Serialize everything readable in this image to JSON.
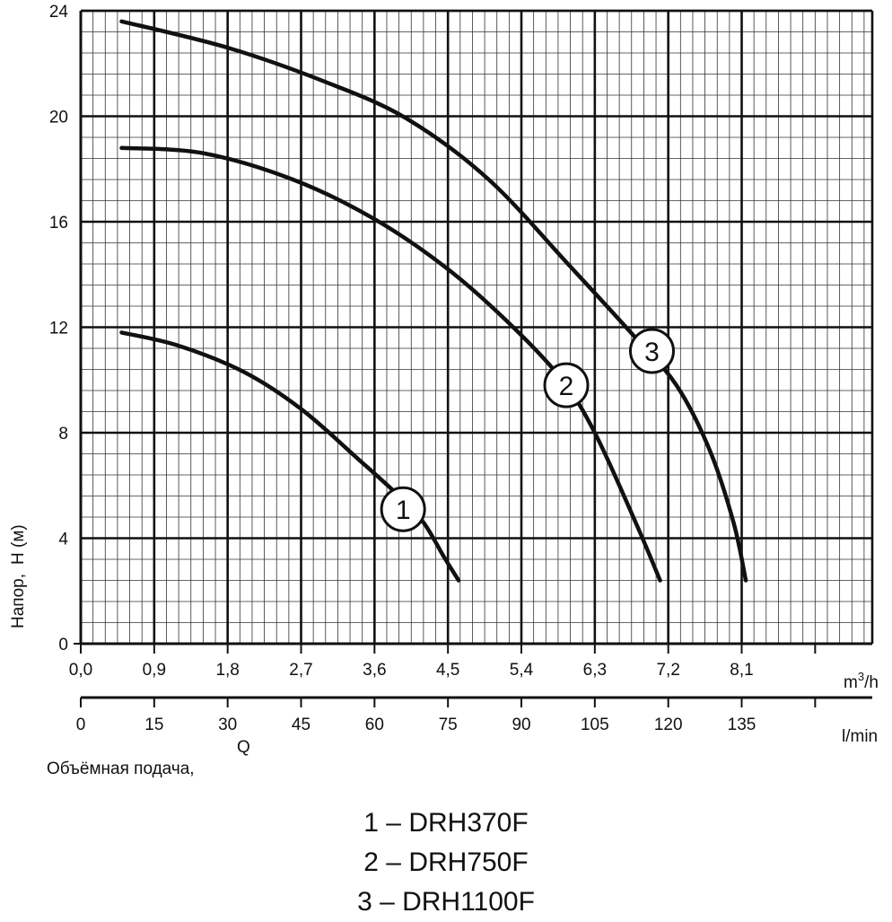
{
  "chart_data": {
    "type": "line",
    "xlabel": "Объёмная подача,",
    "xlabel_symbol": "Q",
    "ylabel": "Напор,",
    "ylabel_symbol": "H (м)",
    "x_unit_primary": "m³/h",
    "x_unit_secondary": "l/min",
    "ylim": [
      0,
      24
    ],
    "xlim": [
      0,
      9.7
    ],
    "grid": true,
    "y_ticks": [
      "0",
      "4",
      "8",
      "12",
      "16",
      "20",
      "24"
    ],
    "x_ticks_m3h": [
      "0,0",
      "0,9",
      "1,8",
      "2,7",
      "3,6",
      "4,5",
      "5,4",
      "6,3",
      "7,2",
      "8,1"
    ],
    "x_ticks_lmin": [
      "0",
      "15",
      "30",
      "45",
      "60",
      "75",
      "90",
      "105",
      "120",
      "135"
    ],
    "series": [
      {
        "name": "1",
        "color": "#111111",
        "x": [
          0.5,
          1.2,
          2.0,
          2.7,
          3.4,
          3.9,
          4.2,
          4.45,
          4.63
        ],
        "y": [
          11.8,
          11.3,
          10.3,
          8.9,
          7.0,
          5.6,
          4.6,
          3.3,
          2.4
        ]
      },
      {
        "name": "2",
        "color": "#111111",
        "x": [
          0.5,
          1.5,
          2.6,
          3.6,
          4.5,
          5.3,
          5.9,
          6.3,
          6.8,
          7.1
        ],
        "y": [
          18.8,
          18.6,
          17.6,
          16.1,
          14.2,
          12.0,
          10.0,
          8.0,
          4.6,
          2.4
        ]
      },
      {
        "name": "3",
        "color": "#111111",
        "x": [
          0.5,
          1.8,
          3.0,
          4.0,
          5.0,
          6.0,
          6.8,
          7.3,
          7.7,
          8.0,
          8.15
        ],
        "y": [
          23.6,
          22.6,
          21.3,
          19.9,
          17.6,
          14.3,
          11.6,
          9.8,
          7.4,
          4.6,
          2.4
        ]
      }
    ],
    "curve_labels": [
      {
        "text": "1",
        "x": 3.95,
        "y": 5.1
      },
      {
        "text": "2",
        "x": 5.95,
        "y": 9.8
      },
      {
        "text": "3",
        "x": 7.0,
        "y": 11.1
      }
    ]
  },
  "legend": [
    "1 – DRH370F",
    "2 – DRH750F",
    "3 – DRH1100F"
  ]
}
